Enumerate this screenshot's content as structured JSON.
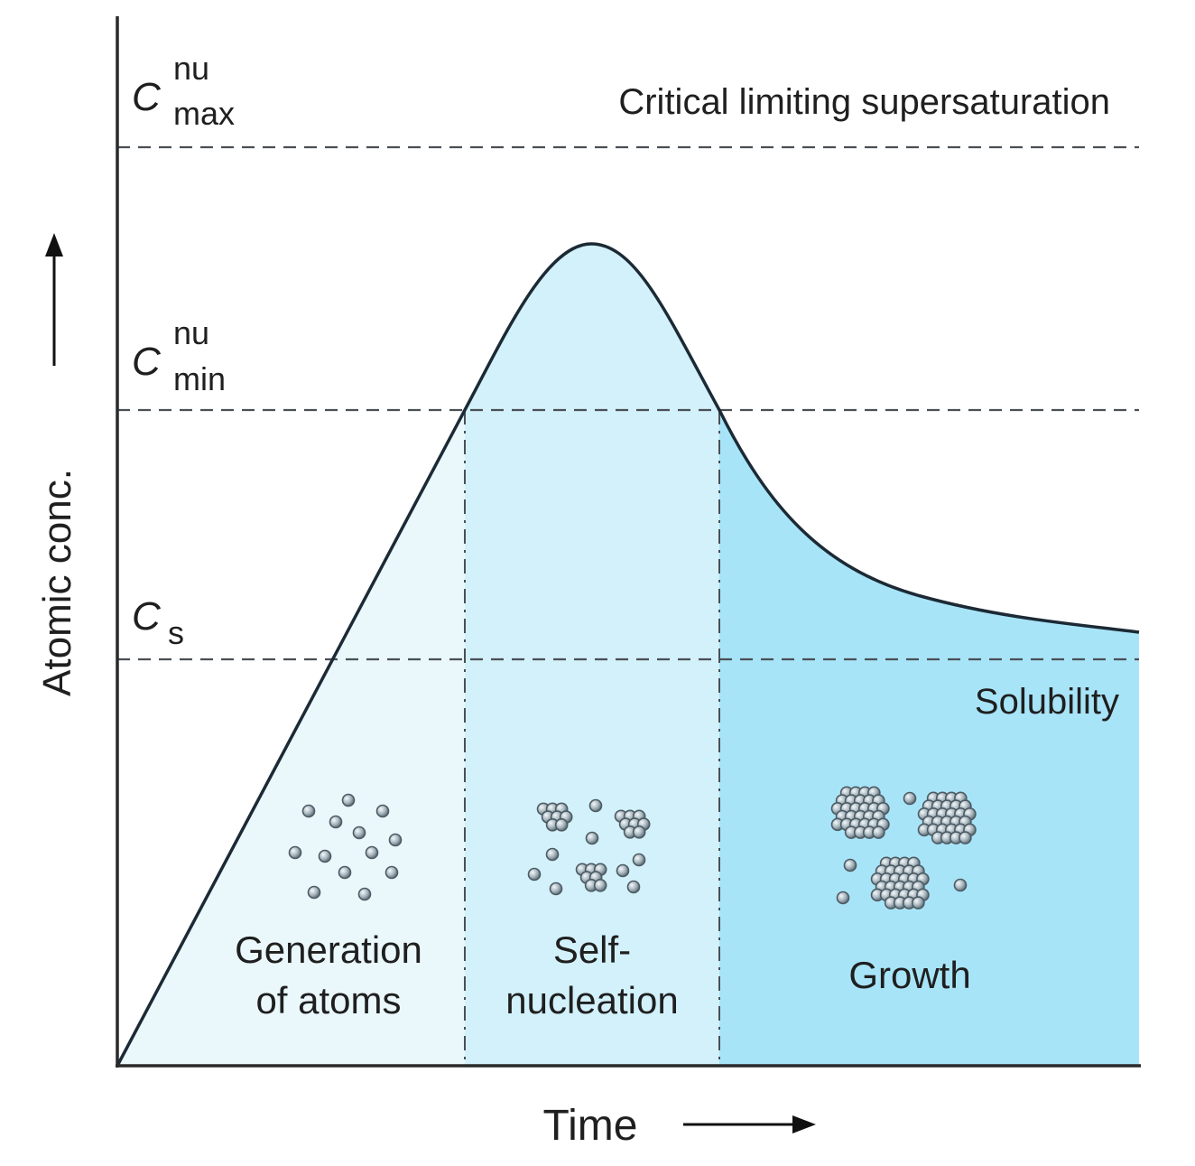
{
  "axes": {
    "y_label": "Atomic conc.",
    "x_label": "Time"
  },
  "levels": {
    "c_max": {
      "base": "C",
      "sup": "nu",
      "sub": "max"
    },
    "c_min": {
      "base": "C",
      "sup": "nu",
      "sub": "min"
    },
    "c_s": {
      "base": "C",
      "sub": "s"
    },
    "critical_text": "Critical limiting supersaturation",
    "solubility_text": "Solubility"
  },
  "stages": [
    {
      "line1": "Generation",
      "line2": "of atoms"
    },
    {
      "line1": "Self-",
      "line2": "nucleation"
    },
    {
      "line1": "Growth"
    }
  ],
  "colors": {
    "stage1_fill": "#eaf8fc",
    "stage2_fill": "#d2f1fb",
    "stage3_fill": "#a8e4f8",
    "curve": "#1b2a35",
    "dashed": "#4a4f55",
    "atom": "#8a9aa3"
  }
}
